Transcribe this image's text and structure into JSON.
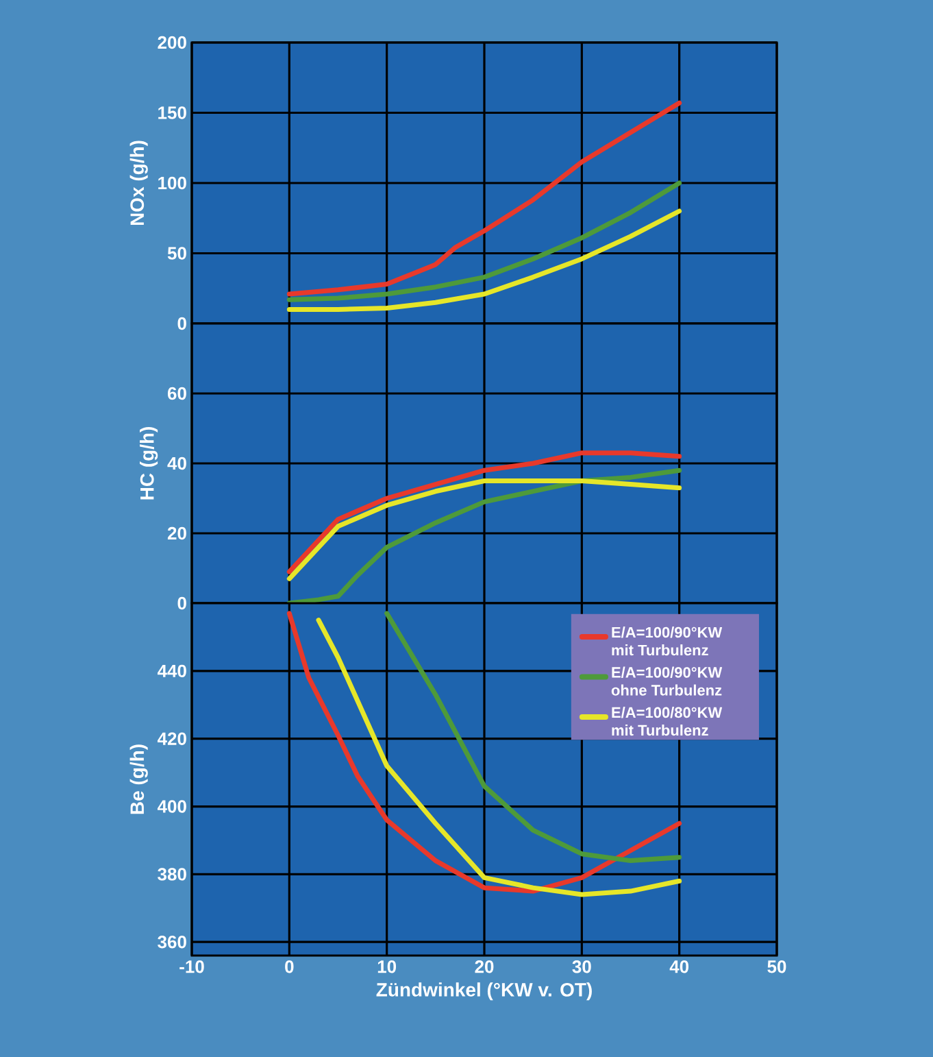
{
  "chart_data": [
    {
      "type": "line",
      "ylabel": "NOx (g/h)",
      "xlim": [
        -10,
        50
      ],
      "xticks": [
        -10,
        0,
        10,
        20,
        30,
        40,
        50
      ],
      "ylim": [
        0,
        200
      ],
      "yticks": [
        0,
        50,
        100,
        150,
        200
      ],
      "grid": true,
      "tick_labels": "y",
      "series": [
        {
          "color": "#e8392b",
          "x": [
            0,
            5,
            10,
            15,
            17,
            20,
            25,
            30,
            35,
            40
          ],
          "values": [
            21,
            24,
            28,
            42,
            54,
            66,
            88,
            115,
            136,
            157
          ]
        },
        {
          "color": "#4e9a3a",
          "x": [
            0,
            5,
            10,
            15,
            20,
            25,
            30,
            35,
            40
          ],
          "values": [
            17,
            18,
            21,
            26,
            33,
            46,
            61,
            79,
            100
          ]
        },
        {
          "color": "#e6e629",
          "x": [
            0,
            5,
            10,
            15,
            20,
            25,
            30,
            35,
            40
          ],
          "values": [
            10,
            10,
            11,
            15,
            21,
            33,
            46,
            62,
            80
          ]
        }
      ]
    },
    {
      "type": "line",
      "ylabel": "HC (g/h)",
      "xlim": [
        -10,
        50
      ],
      "xticks": [
        -10,
        0,
        10,
        20,
        30,
        40,
        50
      ],
      "ylim": [
        0,
        80
      ],
      "yticks": [
        0,
        20,
        40,
        60
      ],
      "grid": true,
      "tick_labels": "y",
      "series": [
        {
          "color": "#e8392b",
          "x": [
            0,
            5,
            10,
            15,
            20,
            25,
            30,
            35,
            40
          ],
          "values": [
            9,
            24,
            30,
            34,
            38,
            40,
            43,
            43,
            42
          ]
        },
        {
          "color": "#4e9a3a",
          "x": [
            0,
            3,
            5,
            7,
            10,
            15,
            20,
            25,
            30,
            35,
            40
          ],
          "values": [
            0,
            1,
            2,
            8,
            16,
            23,
            29,
            32,
            35,
            36,
            38
          ]
        },
        {
          "color": "#e6e629",
          "x": [
            0,
            5,
            10,
            15,
            20,
            25,
            30,
            35,
            40
          ],
          "values": [
            7,
            22,
            28,
            32,
            35,
            35,
            35,
            34,
            33
          ]
        }
      ]
    },
    {
      "type": "line",
      "ylabel": "Be (g/h)",
      "xlabel": "Zündwinkel (°KW v. OT)",
      "xlim": [
        -10,
        50
      ],
      "xticks": [
        -10,
        0,
        10,
        20,
        30,
        40,
        50
      ],
      "ylim": [
        356,
        460
      ],
      "yticks": [
        360,
        380,
        400,
        420,
        440
      ],
      "grid": true,
      "legend": "top right",
      "series": [
        {
          "name": "E/A=100/90°KW mit Turbulenz",
          "color": "#e8392b",
          "x": [
            0,
            2,
            5,
            7,
            10,
            15,
            20,
            25,
            30,
            35,
            40
          ],
          "values": [
            457,
            438,
            421,
            409,
            396,
            384,
            376,
            375,
            379,
            387,
            395
          ]
        },
        {
          "name": "E/A=100/90°KW ohne Turbulenz",
          "color": "#4e9a3a",
          "x": [
            10,
            15,
            20,
            25,
            30,
            35,
            40
          ],
          "values": [
            457,
            433,
            406,
            393,
            386,
            384,
            385
          ]
        },
        {
          "name": "E/A=100/80°KW mit Turbulenz",
          "color": "#e6e629",
          "x": [
            3,
            5,
            10,
            15,
            20,
            25,
            30,
            35,
            40
          ],
          "values": [
            455,
            444,
            412,
            395,
            379,
            376,
            374,
            375,
            378
          ]
        }
      ]
    }
  ]
}
